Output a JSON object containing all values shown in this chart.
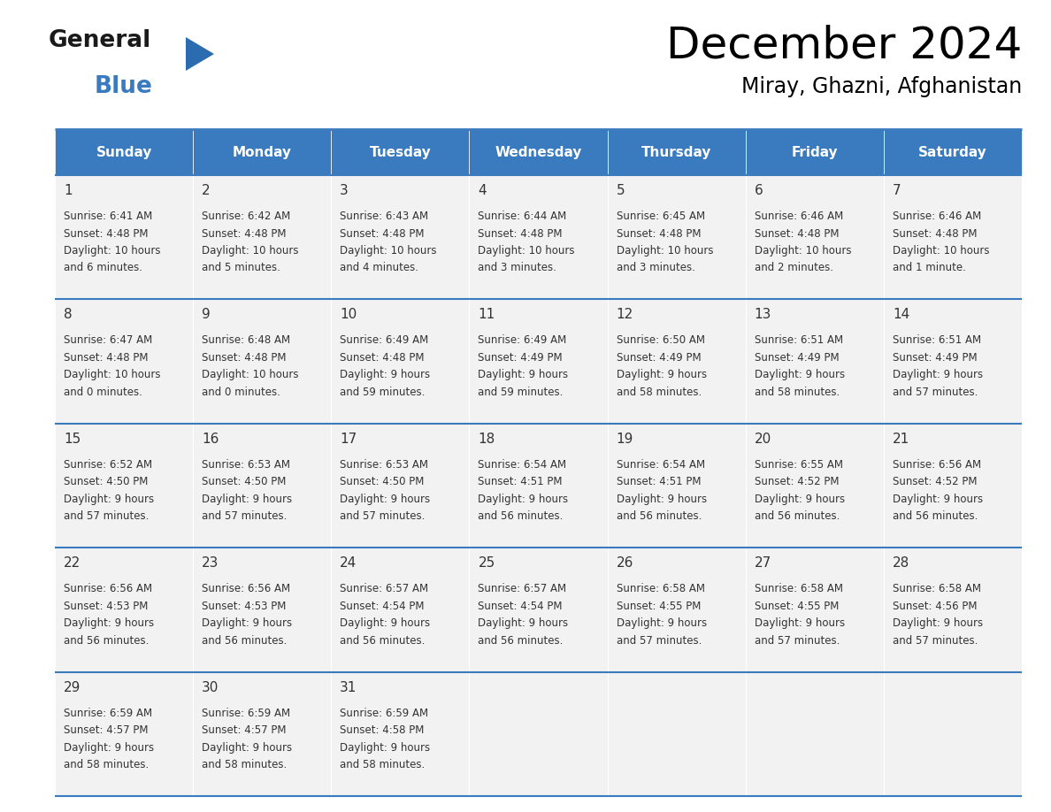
{
  "title": "December 2024",
  "subtitle": "Miray, Ghazni, Afghanistan",
  "header_color": "#3a7bbf",
  "header_text_color": "#ffffff",
  "cell_bg_color": "#f2f2f2",
  "border_color": "#3a7bbf",
  "text_color": "#333333",
  "day_names": [
    "Sunday",
    "Monday",
    "Tuesday",
    "Wednesday",
    "Thursday",
    "Friday",
    "Saturday"
  ],
  "days": [
    {
      "date": 1,
      "col": 0,
      "row": 0,
      "sunrise": "6:41 AM",
      "sunset": "4:48 PM",
      "dl1": "Daylight: 10 hours",
      "dl2": "and 6 minutes."
    },
    {
      "date": 2,
      "col": 1,
      "row": 0,
      "sunrise": "6:42 AM",
      "sunset": "4:48 PM",
      "dl1": "Daylight: 10 hours",
      "dl2": "and 5 minutes."
    },
    {
      "date": 3,
      "col": 2,
      "row": 0,
      "sunrise": "6:43 AM",
      "sunset": "4:48 PM",
      "dl1": "Daylight: 10 hours",
      "dl2": "and 4 minutes."
    },
    {
      "date": 4,
      "col": 3,
      "row": 0,
      "sunrise": "6:44 AM",
      "sunset": "4:48 PM",
      "dl1": "Daylight: 10 hours",
      "dl2": "and 3 minutes."
    },
    {
      "date": 5,
      "col": 4,
      "row": 0,
      "sunrise": "6:45 AM",
      "sunset": "4:48 PM",
      "dl1": "Daylight: 10 hours",
      "dl2": "and 3 minutes."
    },
    {
      "date": 6,
      "col": 5,
      "row": 0,
      "sunrise": "6:46 AM",
      "sunset": "4:48 PM",
      "dl1": "Daylight: 10 hours",
      "dl2": "and 2 minutes."
    },
    {
      "date": 7,
      "col": 6,
      "row": 0,
      "sunrise": "6:46 AM",
      "sunset": "4:48 PM",
      "dl1": "Daylight: 10 hours",
      "dl2": "and 1 minute."
    },
    {
      "date": 8,
      "col": 0,
      "row": 1,
      "sunrise": "6:47 AM",
      "sunset": "4:48 PM",
      "dl1": "Daylight: 10 hours",
      "dl2": "and 0 minutes."
    },
    {
      "date": 9,
      "col": 1,
      "row": 1,
      "sunrise": "6:48 AM",
      "sunset": "4:48 PM",
      "dl1": "Daylight: 10 hours",
      "dl2": "and 0 minutes."
    },
    {
      "date": 10,
      "col": 2,
      "row": 1,
      "sunrise": "6:49 AM",
      "sunset": "4:48 PM",
      "dl1": "Daylight: 9 hours",
      "dl2": "and 59 minutes."
    },
    {
      "date": 11,
      "col": 3,
      "row": 1,
      "sunrise": "6:49 AM",
      "sunset": "4:49 PM",
      "dl1": "Daylight: 9 hours",
      "dl2": "and 59 minutes."
    },
    {
      "date": 12,
      "col": 4,
      "row": 1,
      "sunrise": "6:50 AM",
      "sunset": "4:49 PM",
      "dl1": "Daylight: 9 hours",
      "dl2": "and 58 minutes."
    },
    {
      "date": 13,
      "col": 5,
      "row": 1,
      "sunrise": "6:51 AM",
      "sunset": "4:49 PM",
      "dl1": "Daylight: 9 hours",
      "dl2": "and 58 minutes."
    },
    {
      "date": 14,
      "col": 6,
      "row": 1,
      "sunrise": "6:51 AM",
      "sunset": "4:49 PM",
      "dl1": "Daylight: 9 hours",
      "dl2": "and 57 minutes."
    },
    {
      "date": 15,
      "col": 0,
      "row": 2,
      "sunrise": "6:52 AM",
      "sunset": "4:50 PM",
      "dl1": "Daylight: 9 hours",
      "dl2": "and 57 minutes."
    },
    {
      "date": 16,
      "col": 1,
      "row": 2,
      "sunrise": "6:53 AM",
      "sunset": "4:50 PM",
      "dl1": "Daylight: 9 hours",
      "dl2": "and 57 minutes."
    },
    {
      "date": 17,
      "col": 2,
      "row": 2,
      "sunrise": "6:53 AM",
      "sunset": "4:50 PM",
      "dl1": "Daylight: 9 hours",
      "dl2": "and 57 minutes."
    },
    {
      "date": 18,
      "col": 3,
      "row": 2,
      "sunrise": "6:54 AM",
      "sunset": "4:51 PM",
      "dl1": "Daylight: 9 hours",
      "dl2": "and 56 minutes."
    },
    {
      "date": 19,
      "col": 4,
      "row": 2,
      "sunrise": "6:54 AM",
      "sunset": "4:51 PM",
      "dl1": "Daylight: 9 hours",
      "dl2": "and 56 minutes."
    },
    {
      "date": 20,
      "col": 5,
      "row": 2,
      "sunrise": "6:55 AM",
      "sunset": "4:52 PM",
      "dl1": "Daylight: 9 hours",
      "dl2": "and 56 minutes."
    },
    {
      "date": 21,
      "col": 6,
      "row": 2,
      "sunrise": "6:56 AM",
      "sunset": "4:52 PM",
      "dl1": "Daylight: 9 hours",
      "dl2": "and 56 minutes."
    },
    {
      "date": 22,
      "col": 0,
      "row": 3,
      "sunrise": "6:56 AM",
      "sunset": "4:53 PM",
      "dl1": "Daylight: 9 hours",
      "dl2": "and 56 minutes."
    },
    {
      "date": 23,
      "col": 1,
      "row": 3,
      "sunrise": "6:56 AM",
      "sunset": "4:53 PM",
      "dl1": "Daylight: 9 hours",
      "dl2": "and 56 minutes."
    },
    {
      "date": 24,
      "col": 2,
      "row": 3,
      "sunrise": "6:57 AM",
      "sunset": "4:54 PM",
      "dl1": "Daylight: 9 hours",
      "dl2": "and 56 minutes."
    },
    {
      "date": 25,
      "col": 3,
      "row": 3,
      "sunrise": "6:57 AM",
      "sunset": "4:54 PM",
      "dl1": "Daylight: 9 hours",
      "dl2": "and 56 minutes."
    },
    {
      "date": 26,
      "col": 4,
      "row": 3,
      "sunrise": "6:58 AM",
      "sunset": "4:55 PM",
      "dl1": "Daylight: 9 hours",
      "dl2": "and 57 minutes."
    },
    {
      "date": 27,
      "col": 5,
      "row": 3,
      "sunrise": "6:58 AM",
      "sunset": "4:55 PM",
      "dl1": "Daylight: 9 hours",
      "dl2": "and 57 minutes."
    },
    {
      "date": 28,
      "col": 6,
      "row": 3,
      "sunrise": "6:58 AM",
      "sunset": "4:56 PM",
      "dl1": "Daylight: 9 hours",
      "dl2": "and 57 minutes."
    },
    {
      "date": 29,
      "col": 0,
      "row": 4,
      "sunrise": "6:59 AM",
      "sunset": "4:57 PM",
      "dl1": "Daylight: 9 hours",
      "dl2": "and 58 minutes."
    },
    {
      "date": 30,
      "col": 1,
      "row": 4,
      "sunrise": "6:59 AM",
      "sunset": "4:57 PM",
      "dl1": "Daylight: 9 hours",
      "dl2": "and 58 minutes."
    },
    {
      "date": 31,
      "col": 2,
      "row": 4,
      "sunrise": "6:59 AM",
      "sunset": "4:58 PM",
      "dl1": "Daylight: 9 hours",
      "dl2": "and 58 minutes."
    }
  ],
  "num_rows": 5,
  "logo_general_color": "#1a1a1a",
  "logo_blue_color": "#3a7bbf",
  "logo_triangle_color": "#2b6cb0"
}
